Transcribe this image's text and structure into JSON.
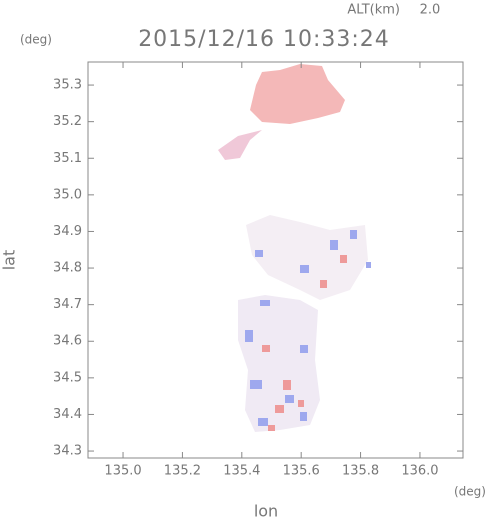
{
  "chart_data": {
    "type": "map",
    "title": "2015/12/16 10:33:24",
    "altitude_label": "ALT(km)",
    "altitude_value": "2.0",
    "y_unit": "(deg)",
    "x_unit": "(deg)",
    "xlabel": "lon",
    "ylabel": "lat",
    "xlim": [
      134.882,
      136.145
    ],
    "ylim": [
      34.281,
      35.363
    ],
    "xticks": [
      {
        "value": 135.0,
        "label": "135.0"
      },
      135.2,
      135.4,
      135.6,
      135.8,
      {
        "value": 136.0,
        "label": "136.0"
      }
    ],
    "yticks": [
      34.3,
      34.4,
      34.5,
      34.6,
      34.7,
      34.8,
      34.9,
      {
        "value": 35.0,
        "label": "35.0"
      },
      35.1,
      35.2,
      35.3
    ]
  }
}
